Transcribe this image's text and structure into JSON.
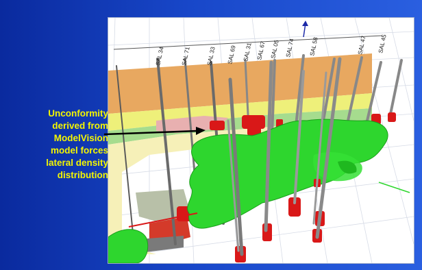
{
  "slide": {
    "caption_lines": [
      "Unconformity",
      "derived from",
      "ModelVision",
      "model forces",
      "lateral density",
      "distribution"
    ]
  },
  "model_view": {
    "well_labels": [
      "SAL 34",
      "SAL 71",
      "SAL 33",
      "SAL 69",
      "SAL 31",
      "SAL 67",
      "SAL 05",
      "SAL 74",
      "SAL 58",
      "SAL 47",
      "SAL 45"
    ],
    "colors": {
      "background_blue": "#1a44c4",
      "caption_yellow": "#f4f600",
      "unconformity_surface_green": "#2ed62e",
      "well_target_red": "#d91818",
      "layer_orange": "#e8a860",
      "layer_yellow": "#eef07a",
      "layer_light_green": "#a6dc8e",
      "layer_pale_yellow": "#f6f0b8"
    }
  }
}
